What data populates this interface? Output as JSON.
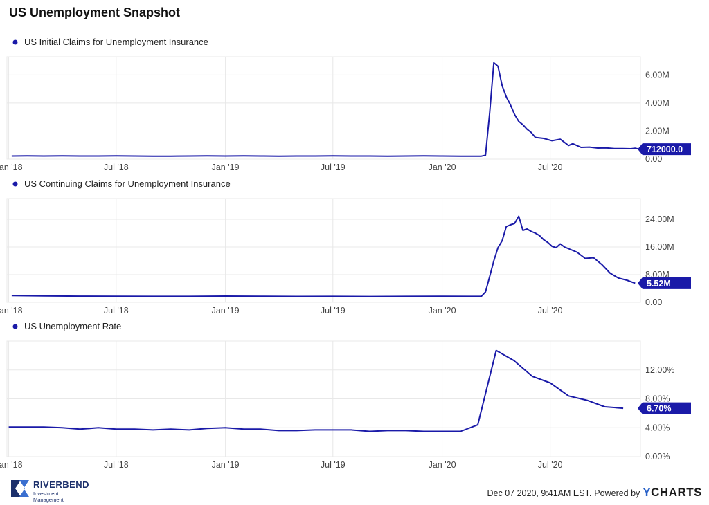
{
  "title": "US Unemployment Snapshot",
  "colors": {
    "line": "#1a1aa8",
    "grid": "#e8e8e8",
    "axis": "#cccccc"
  },
  "x_ticks": [
    "Jan '18",
    "Jul '18",
    "Jan '19",
    "Jul '19",
    "Jan '20",
    "Jul '20"
  ],
  "chart_data": [
    {
      "type": "line",
      "series": [
        {
          "name": "US Initial Claims for Unemployment Insurance",
          "x": [
            "2018-01-06",
            "2018-02-01",
            "2018-03-01",
            "2018-04-01",
            "2018-05-01",
            "2018-06-01",
            "2018-07-01",
            "2018-08-01",
            "2018-09-01",
            "2018-10-01",
            "2018-11-01",
            "2018-12-01",
            "2019-01-01",
            "2019-02-01",
            "2019-03-01",
            "2019-04-01",
            "2019-05-01",
            "2019-06-01",
            "2019-07-01",
            "2019-08-01",
            "2019-09-01",
            "2019-10-01",
            "2019-11-01",
            "2019-12-01",
            "2020-01-01",
            "2020-02-01",
            "2020-03-07",
            "2020-03-14",
            "2020-03-21",
            "2020-03-28",
            "2020-04-04",
            "2020-04-11",
            "2020-04-18",
            "2020-04-25",
            "2020-05-02",
            "2020-05-09",
            "2020-05-16",
            "2020-05-23",
            "2020-05-30",
            "2020-06-06",
            "2020-06-20",
            "2020-07-04",
            "2020-07-18",
            "2020-08-01",
            "2020-08-08",
            "2020-08-22",
            "2020-09-05",
            "2020-09-19",
            "2020-10-03",
            "2020-10-17",
            "2020-10-31",
            "2020-11-14",
            "2020-11-21",
            "2020-11-28"
          ],
          "values": [
            0.22,
            0.23,
            0.22,
            0.23,
            0.22,
            0.22,
            0.23,
            0.22,
            0.21,
            0.21,
            0.22,
            0.23,
            0.22,
            0.23,
            0.22,
            0.21,
            0.22,
            0.22,
            0.23,
            0.22,
            0.22,
            0.21,
            0.22,
            0.23,
            0.22,
            0.21,
            0.21,
            0.28,
            3.3,
            6.87,
            6.62,
            5.24,
            4.44,
            3.87,
            3.18,
            2.69,
            2.45,
            2.13,
            1.9,
            1.55,
            1.48,
            1.31,
            1.42,
            0.97,
            1.1,
            0.84,
            0.86,
            0.79,
            0.8,
            0.75,
            0.75,
            0.74,
            0.78,
            0.71
          ]
        }
      ],
      "value_unit": "M",
      "last_label": "712000.0",
      "y_ticks": [
        "0.00",
        "2.00M",
        "4.00M",
        "6.00M"
      ],
      "ylim": [
        0,
        7.3
      ]
    },
    {
      "type": "line",
      "series": [
        {
          "name": "US Continuing Claims for Unemployment Insurance",
          "x": [
            "2018-01-06",
            "2018-03-01",
            "2018-05-01",
            "2018-07-01",
            "2018-09-01",
            "2018-11-01",
            "2019-01-01",
            "2019-03-01",
            "2019-05-01",
            "2019-07-01",
            "2019-09-01",
            "2019-11-01",
            "2020-01-01",
            "2020-02-15",
            "2020-03-07",
            "2020-03-14",
            "2020-03-21",
            "2020-03-28",
            "2020-04-04",
            "2020-04-11",
            "2020-04-18",
            "2020-04-25",
            "2020-05-02",
            "2020-05-09",
            "2020-05-16",
            "2020-05-23",
            "2020-05-30",
            "2020-06-06",
            "2020-06-13",
            "2020-06-20",
            "2020-06-27",
            "2020-07-04",
            "2020-07-11",
            "2020-07-18",
            "2020-07-25",
            "2020-08-01",
            "2020-08-15",
            "2020-08-29",
            "2020-09-12",
            "2020-09-26",
            "2020-10-10",
            "2020-10-24",
            "2020-11-07",
            "2020-11-21"
          ],
          "values": [
            1.95,
            1.85,
            1.78,
            1.75,
            1.72,
            1.73,
            1.8,
            1.76,
            1.7,
            1.72,
            1.67,
            1.72,
            1.76,
            1.72,
            1.75,
            3.03,
            7.44,
            12.0,
            15.8,
            17.8,
            21.9,
            22.4,
            22.8,
            24.9,
            20.8,
            21.2,
            20.5,
            20.0,
            19.3,
            18.1,
            17.3,
            16.2,
            15.8,
            16.9,
            16.0,
            15.5,
            14.5,
            12.7,
            12.9,
            10.9,
            8.4,
            7.0,
            6.4,
            5.52
          ]
        }
      ],
      "value_unit": "M",
      "last_label": "5.52M",
      "y_ticks": [
        "0.00",
        "8.00M",
        "16.00M",
        "24.00M"
      ],
      "ylim": [
        0,
        30
      ]
    },
    {
      "type": "line",
      "series": [
        {
          "name": "US Unemployment Rate",
          "x": [
            "2018-01-01",
            "2018-02-01",
            "2018-03-01",
            "2018-04-01",
            "2018-05-01",
            "2018-06-01",
            "2018-07-01",
            "2018-08-01",
            "2018-09-01",
            "2018-10-01",
            "2018-11-01",
            "2018-12-01",
            "2019-01-01",
            "2019-02-01",
            "2019-03-01",
            "2019-04-01",
            "2019-05-01",
            "2019-06-01",
            "2019-07-01",
            "2019-08-01",
            "2019-09-01",
            "2019-10-01",
            "2019-11-01",
            "2019-12-01",
            "2020-01-01",
            "2020-02-01",
            "2020-03-01",
            "2020-04-01",
            "2020-05-01",
            "2020-06-01",
            "2020-07-01",
            "2020-08-01",
            "2020-09-01",
            "2020-10-01",
            "2020-11-01"
          ],
          "values": [
            4.1,
            4.1,
            4.1,
            4.0,
            3.8,
            4.0,
            3.8,
            3.8,
            3.7,
            3.8,
            3.7,
            3.9,
            4.0,
            3.8,
            3.8,
            3.6,
            3.6,
            3.7,
            3.7,
            3.7,
            3.5,
            3.6,
            3.6,
            3.5,
            3.5,
            3.5,
            4.4,
            14.7,
            13.3,
            11.1,
            10.2,
            8.4,
            7.8,
            6.9,
            6.7
          ]
        }
      ],
      "value_unit": "%",
      "last_label": "6.70%",
      "y_ticks": [
        "0.00%",
        "4.00%",
        "8.00%",
        "12.00%"
      ],
      "ylim": [
        0,
        16
      ]
    }
  ],
  "footer": {
    "brand": "RIVERBEND",
    "brand_sub": "Investment Management",
    "timestamp": "Dec 07 2020, 9:41AM EST.",
    "powered_by": "Powered by",
    "ycharts_y": "Y",
    "ycharts_rest": "CHARTS"
  }
}
